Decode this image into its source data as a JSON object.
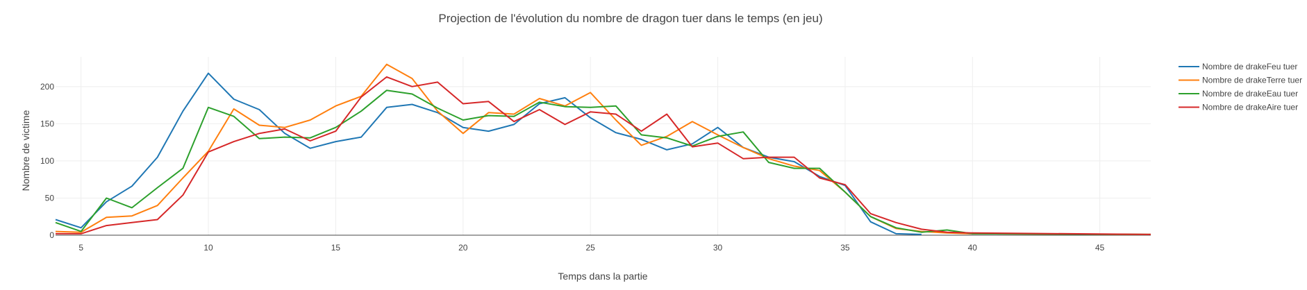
{
  "chart_data": {
    "type": "line",
    "title": "Projection de l'évolution du nombre de dragon tuer dans le temps (en jeu)",
    "xlabel": "Temps dans la partie",
    "ylabel": "Nombre de victime",
    "xlim": [
      4,
      47
    ],
    "ylim": [
      0,
      240
    ],
    "xticks": [
      5,
      10,
      15,
      20,
      25,
      30,
      35,
      40,
      45
    ],
    "yticks": [
      0,
      50,
      100,
      150,
      200
    ],
    "grid": true,
    "legend_position": "top-right",
    "series": [
      {
        "name": "Nombre de drakeFeu tuer",
        "color": "#1f77b4",
        "x": [
          4,
          5,
          6,
          7,
          8,
          9,
          10,
          11,
          12,
          13,
          14,
          15,
          16,
          17,
          18,
          19,
          20,
          21,
          22,
          23,
          24,
          25,
          26,
          27,
          28,
          29,
          30,
          31,
          32,
          33,
          34,
          35,
          36,
          37,
          38
        ],
        "y": [
          21,
          10,
          45,
          66,
          105,
          167,
          218,
          183,
          169,
          137,
          117,
          126,
          132,
          172,
          176,
          165,
          145,
          140,
          149,
          177,
          185,
          158,
          138,
          129,
          115,
          123,
          145,
          118,
          105,
          99,
          79,
          67,
          18,
          2,
          1
        ]
      },
      {
        "name": "Nombre de drakeTerre tuer",
        "color": "#ff7f0e",
        "x": [
          4,
          5,
          6,
          7,
          8,
          9,
          10,
          11,
          12,
          13,
          14,
          15,
          16,
          17,
          18,
          19,
          20,
          21,
          22,
          23,
          24,
          25,
          26,
          27,
          28,
          29,
          30,
          31,
          32,
          33,
          34,
          35,
          36,
          37,
          38,
          39,
          40,
          47
        ],
        "y": [
          5,
          4,
          24,
          26,
          40,
          77,
          113,
          170,
          148,
          145,
          155,
          174,
          187,
          230,
          211,
          167,
          137,
          165,
          163,
          184,
          174,
          192,
          155,
          121,
          133,
          153,
          135,
          118,
          103,
          93,
          87,
          58,
          25,
          9,
          5,
          3,
          2,
          1
        ]
      },
      {
        "name": "Nombre de drakeEau tuer",
        "color": "#2ca02c",
        "x": [
          4,
          5,
          6,
          7,
          8,
          9,
          10,
          11,
          12,
          13,
          14,
          15,
          16,
          17,
          18,
          19,
          20,
          21,
          22,
          23,
          24,
          25,
          26,
          27,
          28,
          29,
          30,
          31,
          32,
          33,
          34,
          35,
          36,
          37,
          38,
          39,
          40,
          47
        ],
        "y": [
          17,
          5,
          50,
          37,
          64,
          90,
          172,
          160,
          130,
          132,
          131,
          145,
          167,
          195,
          190,
          171,
          155,
          161,
          160,
          179,
          173,
          172,
          174,
          135,
          131,
          120,
          133,
          139,
          98,
          90,
          90,
          58,
          25,
          10,
          4,
          7,
          2,
          1
        ]
      },
      {
        "name": "Nombre de drakeAire tuer",
        "color": "#d62728",
        "x": [
          4,
          5,
          6,
          7,
          8,
          9,
          10,
          11,
          12,
          13,
          14,
          15,
          16,
          17,
          18,
          19,
          20,
          21,
          22,
          23,
          24,
          25,
          26,
          27,
          28,
          29,
          30,
          31,
          32,
          33,
          34,
          35,
          36,
          37,
          38,
          39,
          40,
          47
        ],
        "y": [
          2,
          2,
          13,
          17,
          21,
          54,
          112,
          126,
          137,
          143,
          127,
          140,
          186,
          213,
          200,
          206,
          177,
          180,
          153,
          169,
          149,
          166,
          163,
          140,
          163,
          119,
          124,
          103,
          105,
          105,
          77,
          68,
          29,
          17,
          8,
          4,
          3,
          1
        ]
      }
    ]
  }
}
